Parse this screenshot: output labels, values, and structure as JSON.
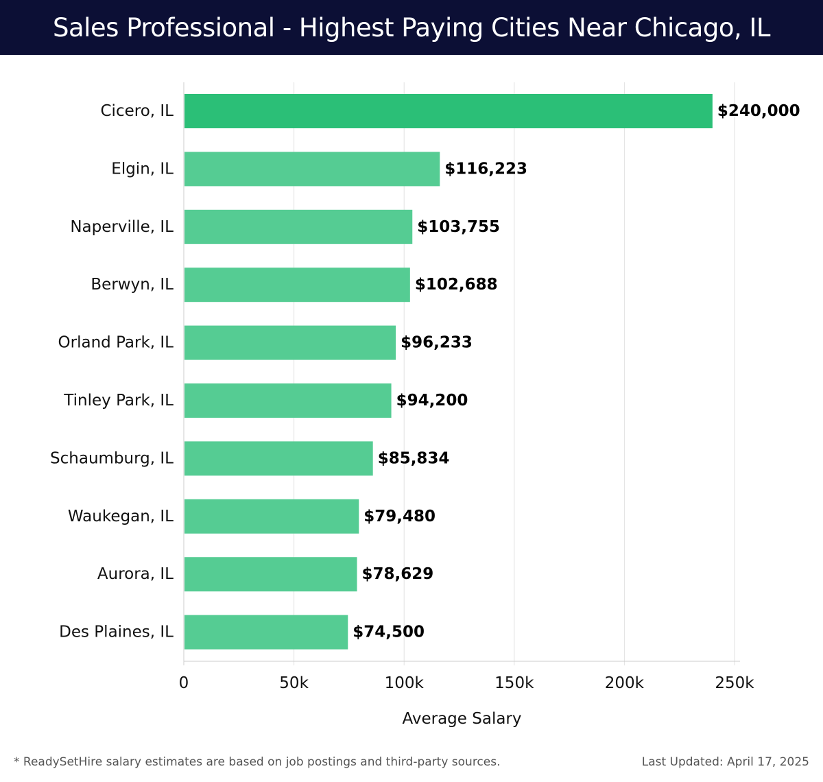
{
  "header": {
    "title": "Sales Professional - Highest Paying Cities Near Chicago, IL"
  },
  "footer": {
    "note": "* ReadySetHire salary estimates are based on job postings and third-party sources.",
    "updated": "Last Updated: April 17, 2025"
  },
  "colors": {
    "header_bg": "#0c0f35",
    "bar_highlight": "#2bbf77",
    "bar": "#55cc93",
    "grid": "#e2e2e2"
  },
  "chart_data": {
    "type": "bar",
    "orientation": "horizontal",
    "categories": [
      "Cicero, IL",
      "Elgin, IL",
      "Naperville, IL",
      "Berwyn, IL",
      "Orland Park, IL",
      "Tinley Park, IL",
      "Schaumburg, IL",
      "Waukegan, IL",
      "Aurora, IL",
      "Des Plaines, IL"
    ],
    "values": [
      240000,
      116223,
      103755,
      102688,
      96233,
      94200,
      85834,
      79480,
      78629,
      74500
    ],
    "value_labels": [
      "$240,000",
      "$116,223",
      "$103,755",
      "$102,688",
      "$96,233",
      "$94,200",
      "$85,834",
      "$79,480",
      "$78,629",
      "$74,500"
    ],
    "xlabel": "Average Salary",
    "ylabel": "",
    "xlim": [
      0,
      250000
    ],
    "xticks": [
      0,
      50000,
      100000,
      150000,
      200000,
      250000
    ],
    "xtick_labels": [
      "0",
      "50k",
      "100k",
      "150k",
      "200k",
      "250k"
    ],
    "grid": "vertical",
    "legend": "none"
  }
}
